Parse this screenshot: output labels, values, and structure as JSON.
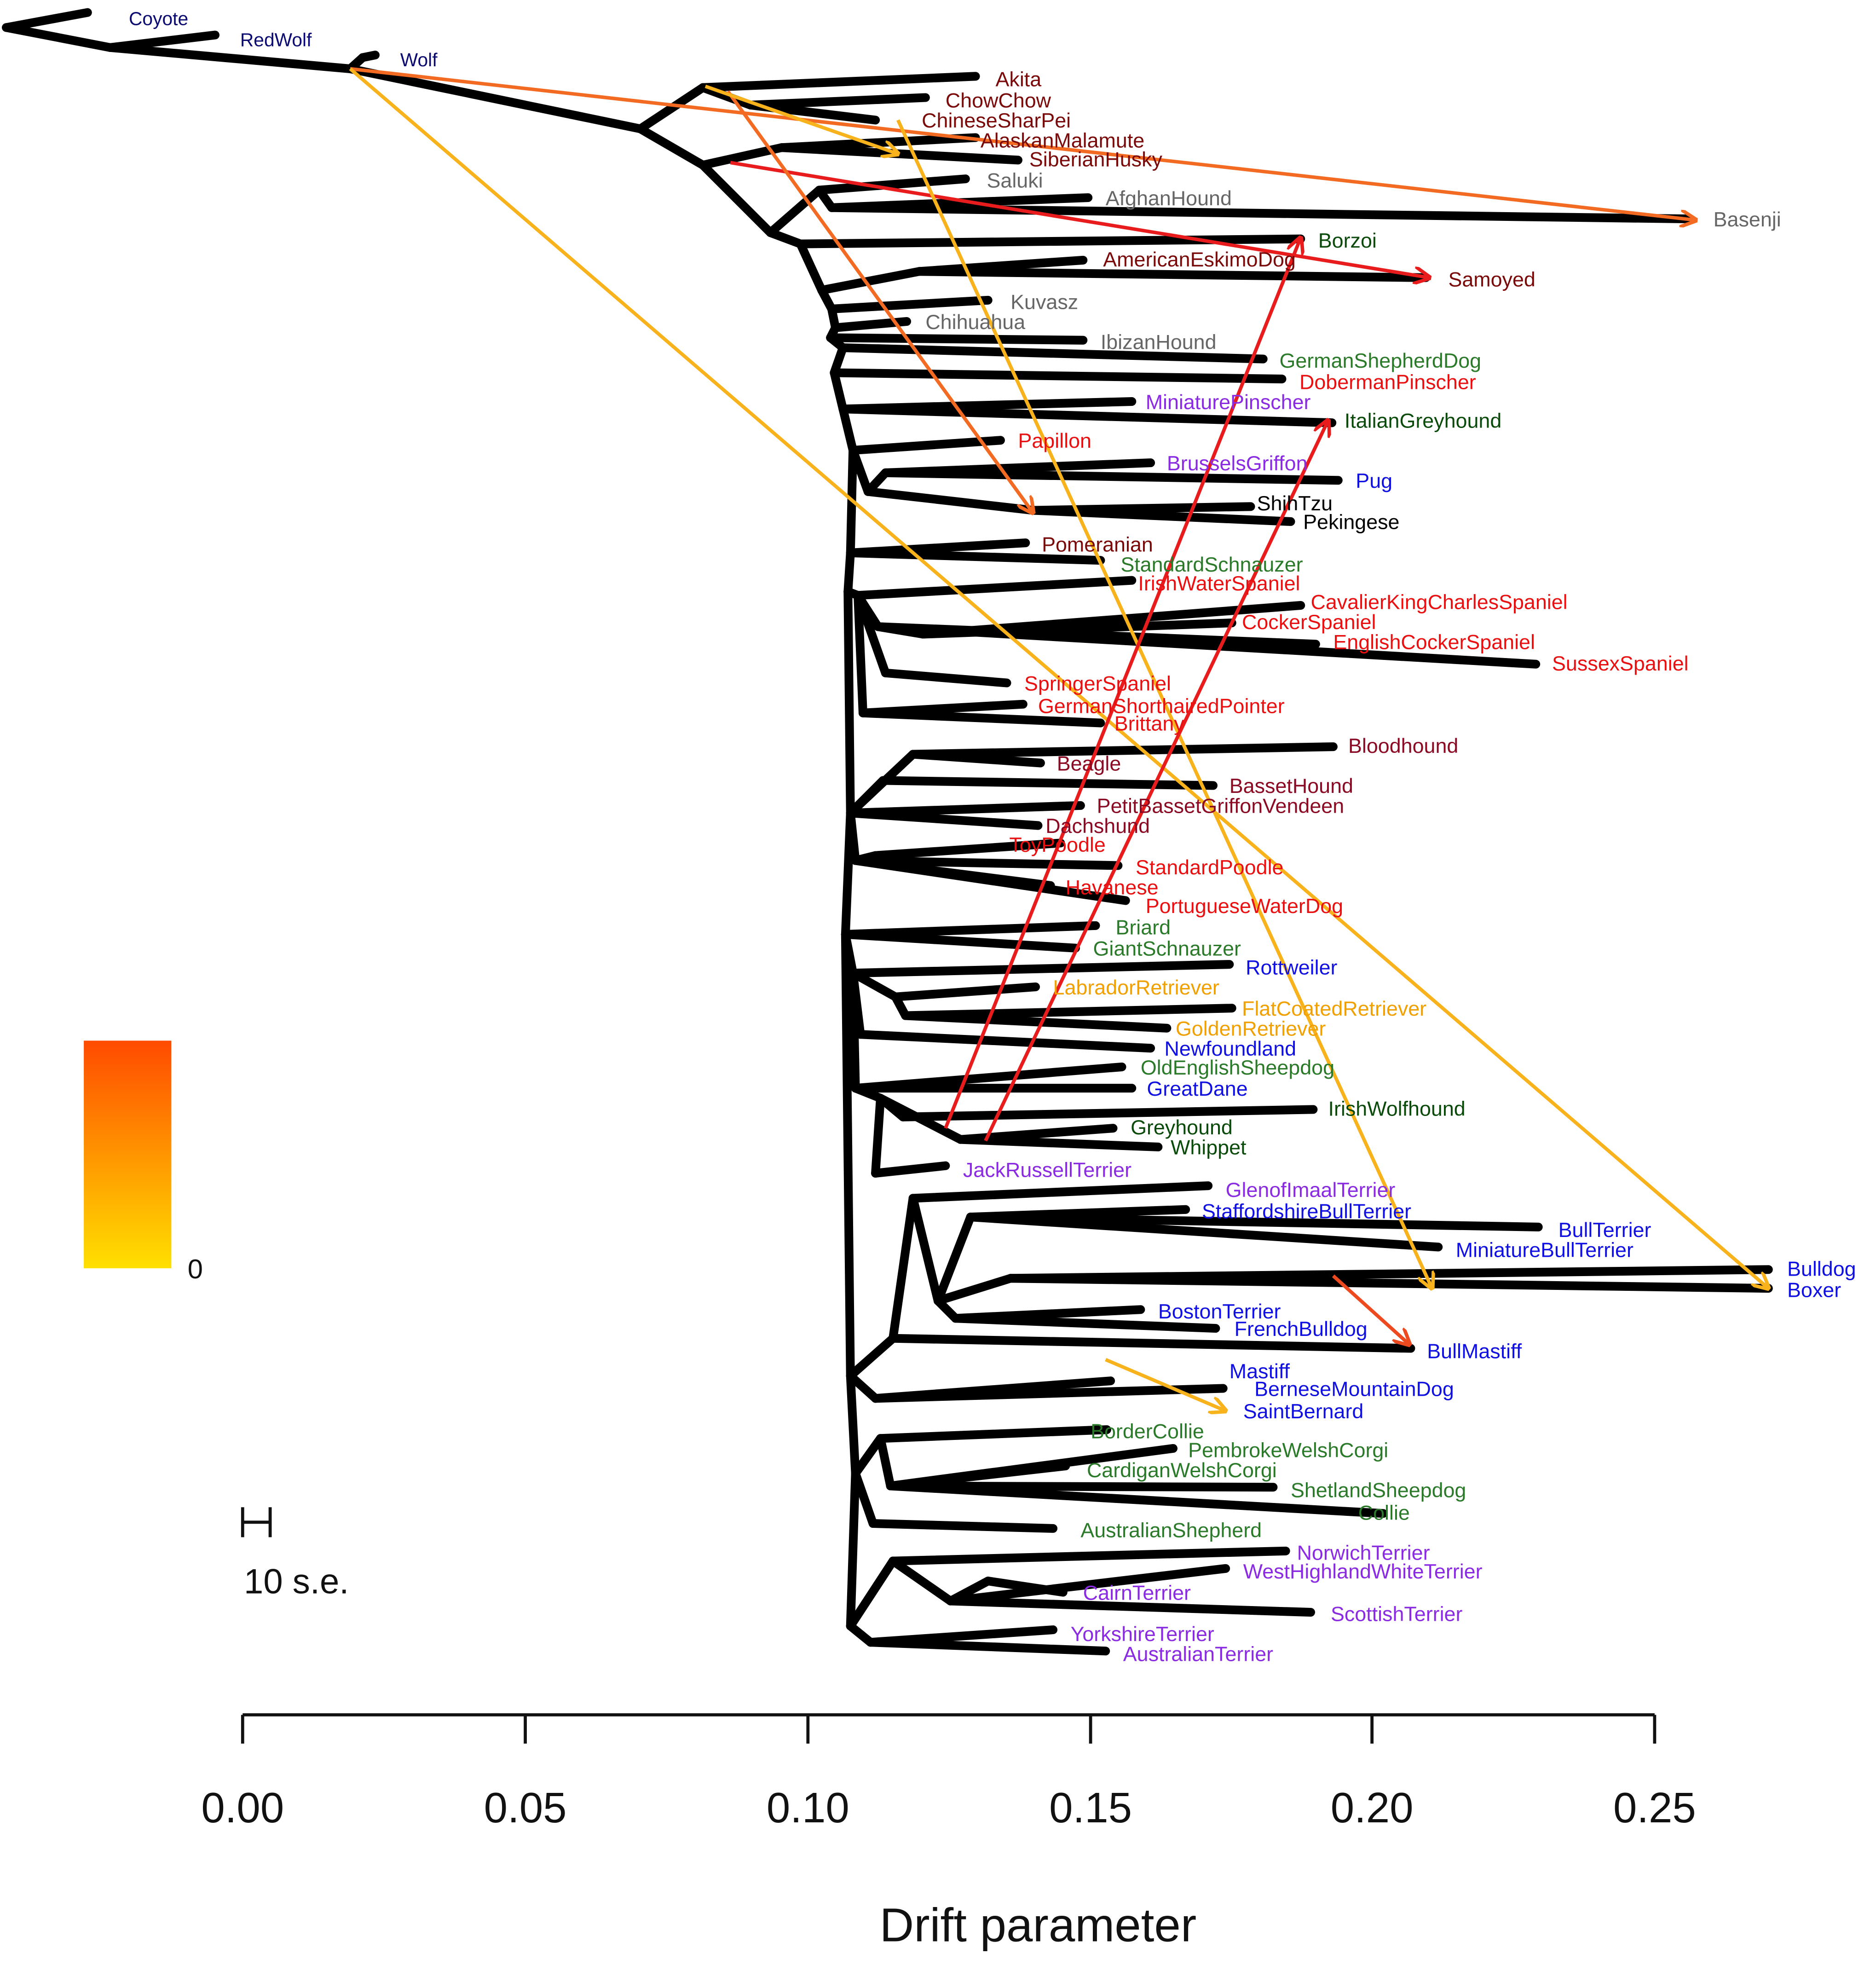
{
  "axis": {
    "title": "Drift parameter",
    "ticks": [
      "0.00",
      "0.05",
      "0.10",
      "0.15",
      "0.20",
      "0.25"
    ]
  },
  "scale_bar": {
    "label": "10 s.e."
  },
  "migration_scale": {
    "min_label": "0",
    "colors": [
      "#ffe000",
      "#ff4a00"
    ]
  },
  "group_colors": {
    "outgroup": "#0a0a70",
    "asian_spitz": "#7a0a0a",
    "gray": "#666666",
    "sighthound": "#0a4a0a",
    "working": "#2a7a2a",
    "toy": "#8a2be2",
    "spaniel": "#e81010",
    "hound": "#8a0a24",
    "retriever": "#f0a000",
    "mastiff": "#1010e0",
    "black": "#000000"
  },
  "tips": [
    {
      "name": "Coyote",
      "group": "outgroup"
    },
    {
      "name": "RedWolf",
      "group": "outgroup"
    },
    {
      "name": "Wolf",
      "group": "outgroup"
    },
    {
      "name": "Akita",
      "group": "asian_spitz"
    },
    {
      "name": "ChowChow",
      "group": "asian_spitz"
    },
    {
      "name": "ChineseSharPei",
      "group": "asian_spitz"
    },
    {
      "name": "AlaskanMalamute",
      "group": "asian_spitz"
    },
    {
      "name": "SiberianHusky",
      "group": "asian_spitz"
    },
    {
      "name": "Saluki",
      "group": "gray"
    },
    {
      "name": "AfghanHound",
      "group": "gray"
    },
    {
      "name": "Basenji",
      "group": "gray"
    },
    {
      "name": "Borzoi",
      "group": "sighthound"
    },
    {
      "name": "AmericanEskimoDog",
      "group": "asian_spitz"
    },
    {
      "name": "Samoyed",
      "group": "asian_spitz"
    },
    {
      "name": "Kuvasz",
      "group": "gray"
    },
    {
      "name": "Chihuahua",
      "group": "gray"
    },
    {
      "name": "IbizanHound",
      "group": "gray"
    },
    {
      "name": "GermanShepherdDog",
      "group": "working"
    },
    {
      "name": "DobermanPinscher",
      "group": "spaniel"
    },
    {
      "name": "MiniaturePinscher",
      "group": "toy"
    },
    {
      "name": "ItalianGreyhound",
      "group": "sighthound"
    },
    {
      "name": "Papillon",
      "group": "spaniel"
    },
    {
      "name": "BrusselsGriffon",
      "group": "toy"
    },
    {
      "name": "Pug",
      "group": "mastiff"
    },
    {
      "name": "ShihTzu",
      "group": "black"
    },
    {
      "name": "Pekingese",
      "group": "black"
    },
    {
      "name": "Pomeranian",
      "group": "asian_spitz"
    },
    {
      "name": "StandardSchnauzer",
      "group": "working"
    },
    {
      "name": "IrishWaterSpaniel",
      "group": "spaniel"
    },
    {
      "name": "CavalierKingCharlesSpaniel",
      "group": "spaniel"
    },
    {
      "name": "CockerSpaniel",
      "group": "spaniel"
    },
    {
      "name": "EnglishCockerSpaniel",
      "group": "spaniel"
    },
    {
      "name": "SussexSpaniel",
      "group": "spaniel"
    },
    {
      "name": "SpringerSpaniel",
      "group": "spaniel"
    },
    {
      "name": "GermanShorthairedPointer",
      "group": "spaniel"
    },
    {
      "name": "Brittany",
      "group": "spaniel"
    },
    {
      "name": "Bloodhound",
      "group": "hound"
    },
    {
      "name": "Beagle",
      "group": "hound"
    },
    {
      "name": "BassetHound",
      "group": "hound"
    },
    {
      "name": "PetitBassetGriffonVendeen",
      "group": "hound"
    },
    {
      "name": "Dachshund",
      "group": "hound"
    },
    {
      "name": "ToyPoodle",
      "group": "spaniel"
    },
    {
      "name": "StandardPoodle",
      "group": "spaniel"
    },
    {
      "name": "Havanese",
      "group": "spaniel"
    },
    {
      "name": "PortugueseWaterDog",
      "group": "spaniel"
    },
    {
      "name": "Briard",
      "group": "working"
    },
    {
      "name": "GiantSchnauzer",
      "group": "working"
    },
    {
      "name": "Rottweiler",
      "group": "mastiff"
    },
    {
      "name": "LabradorRetriever",
      "group": "retriever"
    },
    {
      "name": "FlatCoatedRetriever",
      "group": "retriever"
    },
    {
      "name": "GoldenRetriever",
      "group": "retriever"
    },
    {
      "name": "Newfoundland",
      "group": "mastiff"
    },
    {
      "name": "OldEnglishSheepdog",
      "group": "working"
    },
    {
      "name": "GreatDane",
      "group": "mastiff"
    },
    {
      "name": "IrishWolfhound",
      "group": "sighthound"
    },
    {
      "name": "Greyhound",
      "group": "sighthound"
    },
    {
      "name": "Whippet",
      "group": "sighthound"
    },
    {
      "name": "JackRussellTerrier",
      "group": "toy"
    },
    {
      "name": "GlenofImaalTerrier",
      "group": "toy"
    },
    {
      "name": "StaffordshireBullTerrier",
      "group": "mastiff"
    },
    {
      "name": "BullTerrier",
      "group": "mastiff"
    },
    {
      "name": "MiniatureBullTerrier",
      "group": "mastiff"
    },
    {
      "name": "Bulldog",
      "group": "mastiff"
    },
    {
      "name": "Boxer",
      "group": "mastiff"
    },
    {
      "name": "BostonTerrier",
      "group": "mastiff"
    },
    {
      "name": "FrenchBulldog",
      "group": "mastiff"
    },
    {
      "name": "BullMastiff",
      "group": "mastiff"
    },
    {
      "name": "Mastiff",
      "group": "mastiff"
    },
    {
      "name": "BerneseMountainDog",
      "group": "mastiff"
    },
    {
      "name": "SaintBernard",
      "group": "mastiff"
    },
    {
      "name": "BorderCollie",
      "group": "working"
    },
    {
      "name": "PembrokeWelshCorgi",
      "group": "working"
    },
    {
      "name": "CardiganWelshCorgi",
      "group": "working"
    },
    {
      "name": "ShetlandSheepdog",
      "group": "working"
    },
    {
      "name": "Collie",
      "group": "working"
    },
    {
      "name": "AustralianShepherd",
      "group": "working"
    },
    {
      "name": "NorwichTerrier",
      "group": "toy"
    },
    {
      "name": "WestHighlandWhiteTerrier",
      "group": "toy"
    },
    {
      "name": "CairnTerrier",
      "group": "toy"
    },
    {
      "name": "ScottishTerrier",
      "group": "toy"
    },
    {
      "name": "YorkshireTerrier",
      "group": "toy"
    },
    {
      "name": "AustralianTerrier",
      "group": "toy"
    }
  ],
  "migration_edges": [
    {
      "from": "Wolf",
      "to": "Basenji",
      "weight": 0.75
    },
    {
      "from": "Wolf",
      "to": "Bulldog",
      "weight": 0.25
    },
    {
      "from": "AsianSpitz",
      "to": "Samoyed",
      "weight": 1.0
    },
    {
      "from": "AsianSpitz",
      "to": "Pekingese",
      "weight": 0.75
    },
    {
      "from": "ChineseSharPei",
      "to": "MiniatureBullTerrier",
      "weight": 0.25
    },
    {
      "from": "AlaskanMalamute",
      "to": "ChineseSharPei",
      "weight": 0.25
    },
    {
      "from": "Greyhound",
      "to": "Borzoi",
      "weight": 1.0
    },
    {
      "from": "Whippet",
      "to": "ItalianGreyhound",
      "weight": 1.0
    },
    {
      "from": "Bulldog",
      "to": "BullMastiff",
      "weight": 0.75
    },
    {
      "from": "Mastiff",
      "to": "SaintBernard",
      "weight": 0.4
    }
  ]
}
